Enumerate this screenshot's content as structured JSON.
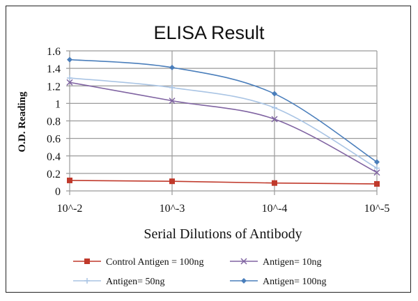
{
  "chart_data": {
    "type": "line",
    "title": "ELISA Result",
    "xlabel": "Serial Dilutions  of Antibody",
    "ylabel": "O.D. Reading",
    "categories": [
      "10^-2",
      "10^-3",
      "10^-4",
      "10^-5"
    ],
    "ylim": [
      0,
      1.6
    ],
    "yticks": [
      "0",
      "0.2",
      "0.4",
      "0.6",
      "0.8",
      "1",
      "1.2",
      "1.4",
      "1.6"
    ],
    "grid": true,
    "legend_position": "bottom",
    "series": [
      {
        "name": "Control Antigen = 100ng",
        "values": [
          0.12,
          0.11,
          0.09,
          0.08
        ],
        "color": "#c0392b",
        "marker": "square"
      },
      {
        "name": "Antigen= 10ng",
        "values": [
          1.24,
          1.03,
          0.82,
          0.21
        ],
        "color": "#8064a2",
        "marker": "x"
      },
      {
        "name": "Antigen= 50ng",
        "values": [
          1.29,
          1.18,
          0.95,
          0.26
        ],
        "color": "#a9c4e4",
        "marker": "plus"
      },
      {
        "name": "Antigen= 100ng",
        "values": [
          1.5,
          1.41,
          1.11,
          0.33
        ],
        "color": "#4a7ebb",
        "marker": "diamond"
      }
    ]
  }
}
